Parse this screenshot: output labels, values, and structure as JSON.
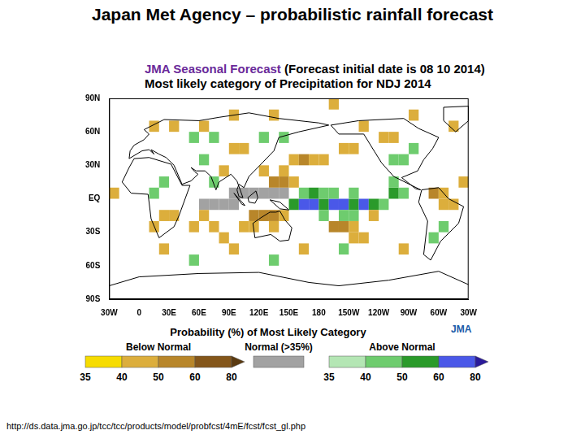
{
  "title": "Japan Met Agency – probabilistic rainfall forecast",
  "source_url": "http://ds.data.jma.go.jp/tcc/tcc/products/model/probfcst/4mE/fcst/fcst_gl.php",
  "logo": "JMA",
  "chart_data": {
    "type": "map",
    "title": "JMA Seasonal Forecast",
    "title_note": "(Forecast initial date is 08 10 2014)",
    "subtitle": "Most likely category of Precipitation for NDJ 2014",
    "xlim": [
      -30,
      330
    ],
    "xticks": [
      {
        "value": -30,
        "label": "30W"
      },
      0,
      {
        "value": 30,
        "label": "30E"
      },
      {
        "value": 60,
        "label": "60E"
      },
      {
        "value": 90,
        "label": "90E"
      },
      {
        "value": 120,
        "label": "120E"
      },
      {
        "value": 150,
        "label": "150E"
      },
      180,
      {
        "value": 210,
        "label": "150W"
      },
      {
        "value": 240,
        "label": "120W"
      },
      {
        "value": 270,
        "label": "90W"
      },
      {
        "value": 300,
        "label": "60W"
      },
      {
        "value": 330,
        "label": "30W"
      }
    ],
    "ylim": [
      -90,
      90
    ],
    "yticks": [
      {
        "value": -90,
        "label": "90S"
      },
      {
        "value": -60,
        "label": "60S"
      },
      {
        "value": -30,
        "label": "30S"
      },
      {
        "value": 0,
        "label": "EQ"
      },
      {
        "value": 30,
        "label": "30N"
      },
      {
        "value": 60,
        "label": "60N"
      },
      {
        "value": 90,
        "label": "90N"
      }
    ],
    "grid": false,
    "cell_size": 10,
    "cells": [
      [
        95,
        5,
        "normal",
        40
      ],
      [
        105,
        5,
        "normal",
        40
      ],
      [
        115,
        5,
        "normal",
        40
      ],
      [
        125,
        5,
        "normal",
        40
      ],
      [
        135,
        5,
        "normal",
        40
      ],
      [
        145,
        5,
        "normal",
        40
      ],
      [
        65,
        -5,
        "normal",
        40
      ],
      [
        75,
        -5,
        "normal",
        40
      ],
      [
        85,
        -5,
        "normal",
        40
      ],
      [
        95,
        -5,
        "normal",
        40
      ],
      [
        155,
        -5,
        "above",
        50
      ],
      [
        165,
        -5,
        "above",
        65
      ],
      [
        175,
        -5,
        "above",
        65
      ],
      [
        185,
        -5,
        "above",
        55
      ],
      [
        195,
        -5,
        "above",
        65
      ],
      [
        205,
        -5,
        "above",
        65
      ],
      [
        215,
        -5,
        "above",
        55
      ],
      [
        225,
        -5,
        "above",
        65
      ],
      [
        235,
        -5,
        "above",
        55
      ],
      [
        245,
        -5,
        "above",
        45
      ],
      [
        165,
        5,
        "above",
        45
      ],
      [
        175,
        5,
        "above",
        55
      ],
      [
        185,
        5,
        "above",
        45
      ],
      [
        195,
        5,
        "above",
        45
      ],
      [
        215,
        5,
        "above",
        40
      ],
      [
        255,
        5,
        "above",
        50
      ],
      [
        265,
        5,
        "above",
        45
      ],
      [
        185,
        -15,
        "above",
        40
      ],
      [
        205,
        -15,
        "above",
        40
      ],
      [
        215,
        -15,
        "above",
        45
      ],
      [
        135,
        15,
        "below",
        50
      ],
      [
        145,
        15,
        "below",
        50
      ],
      [
        155,
        15,
        "below",
        45
      ],
      [
        125,
        25,
        "below",
        45
      ],
      [
        145,
        25,
        "below",
        40
      ],
      [
        155,
        35,
        "below",
        45
      ],
      [
        165,
        35,
        "below",
        50
      ],
      [
        175,
        35,
        "below",
        45
      ],
      [
        185,
        35,
        "below",
        45
      ],
      [
        205,
        45,
        "below",
        40
      ],
      [
        215,
        45,
        "below",
        40
      ],
      [
        115,
        -15,
        "below",
        50
      ],
      [
        125,
        -15,
        "below",
        55
      ],
      [
        135,
        -15,
        "below",
        50
      ],
      [
        145,
        -15,
        "below",
        45
      ],
      [
        105,
        -25,
        "below",
        45
      ],
      [
        115,
        -25,
        "below",
        40
      ],
      [
        135,
        -25,
        "below",
        40
      ],
      [
        195,
        -25,
        "below",
        50
      ],
      [
        205,
        -25,
        "below",
        50
      ],
      [
        215,
        -25,
        "below",
        45
      ],
      [
        215,
        -35,
        "below",
        45
      ],
      [
        225,
        -35,
        "below",
        40
      ],
      [
        235,
        -15,
        "below",
        40
      ],
      [
        295,
        5,
        "below",
        50
      ],
      [
        305,
        5,
        "below",
        45
      ],
      [
        305,
        -5,
        "below",
        45
      ],
      [
        315,
        -5,
        "below",
        40
      ],
      [
        305,
        -25,
        "above",
        40
      ],
      [
        295,
        -35,
        "above",
        40
      ],
      [
        325,
        15,
        "below",
        40
      ],
      [
        -25,
        5,
        "below",
        40
      ],
      [
        25,
        -15,
        "below",
        45
      ],
      [
        35,
        -15,
        "below",
        45
      ],
      [
        15,
        -25,
        "below",
        40
      ],
      [
        15,
        5,
        "above",
        40
      ],
      [
        25,
        15,
        "above",
        40
      ],
      [
        55,
        55,
        "above",
        40
      ],
      [
        75,
        55,
        "above",
        40
      ],
      [
        95,
        45,
        "below",
        40
      ],
      [
        105,
        45,
        "below",
        40
      ],
      [
        15,
        65,
        "below",
        45
      ],
      [
        35,
        65,
        "below",
        45
      ],
      [
        65,
        65,
        "below",
        40
      ],
      [
        95,
        75,
        "below",
        40
      ],
      [
        135,
        75,
        "below",
        45
      ],
      [
        125,
        55,
        "above",
        40
      ],
      [
        145,
        55,
        "above",
        40
      ],
      [
        85,
        25,
        "below",
        40
      ],
      [
        65,
        35,
        "above",
        40
      ],
      [
        75,
        15,
        "above",
        40
      ],
      [
        245,
        55,
        "below",
        45
      ],
      [
        255,
        55,
        "below",
        45
      ],
      [
        225,
        65,
        "below",
        40
      ],
      [
        255,
        35,
        "above",
        45
      ],
      [
        265,
        35,
        "above",
        45
      ],
      [
        275,
        45,
        "above",
        40
      ],
      [
        275,
        75,
        "below",
        45
      ],
      [
        255,
        15,
        "above",
        40
      ],
      [
        315,
        65,
        "below",
        40
      ],
      [
        195,
        85,
        "below",
        40
      ],
      [
        25,
        -45,
        "below",
        40
      ],
      [
        95,
        -45,
        "below",
        40
      ],
      [
        165,
        -45,
        "below",
        40
      ],
      [
        265,
        -45,
        "below",
        40
      ],
      [
        55,
        -55,
        "above",
        40
      ],
      [
        135,
        -55,
        "above",
        40
      ],
      [
        205,
        -45,
        "above",
        40
      ],
      [
        55,
        -25,
        "below",
        45
      ],
      [
        75,
        -25,
        "below",
        45
      ],
      [
        65,
        -15,
        "below",
        40
      ],
      [
        85,
        -35,
        "below",
        40
      ]
    ],
    "coastlines": [
      [
        [
          -17,
          15
        ],
        [
          -10,
          28
        ],
        [
          -5,
          36
        ],
        [
          10,
          37
        ],
        [
          32,
          31
        ],
        [
          43,
          12
        ],
        [
          51,
          12
        ],
        [
          40,
          -15
        ],
        [
          35,
          -25
        ],
        [
          20,
          -35
        ],
        [
          12,
          -18
        ],
        [
          9,
          4
        ],
        [
          -8,
          5
        ],
        [
          -17,
          15
        ]
      ],
      [
        [
          280,
          -3
        ],
        [
          283,
          8
        ],
        [
          300,
          10
        ],
        [
          310,
          0
        ],
        [
          325,
          -7
        ],
        [
          320,
          -22
        ],
        [
          302,
          -38
        ],
        [
          292,
          -55
        ],
        [
          285,
          -50
        ],
        [
          289,
          -20
        ],
        [
          280,
          -3
        ]
      ],
      [
        [
          192,
          66
        ],
        [
          220,
          70
        ],
        [
          265,
          72
        ],
        [
          280,
          63
        ],
        [
          300,
          55
        ],
        [
          294,
          45
        ],
        [
          285,
          35
        ],
        [
          279,
          25
        ],
        [
          263,
          19
        ],
        [
          277,
          9
        ],
        [
          282,
          8
        ],
        [
          255,
          20
        ],
        [
          243,
          32
        ],
        [
          236,
          42
        ],
        [
          225,
          58
        ],
        [
          200,
          58
        ],
        [
          192,
          66
        ]
      ],
      [
        [
          305,
          82
        ],
        [
          330,
          83
        ],
        [
          330,
          70
        ],
        [
          317,
          60
        ],
        [
          305,
          70
        ],
        [
          305,
          82
        ]
      ],
      [
        [
          -10,
          36
        ],
        [
          -9,
          43
        ],
        [
          -5,
          48
        ],
        [
          5,
          53
        ],
        [
          10,
          58
        ],
        [
          5,
          62
        ],
        [
          25,
          71
        ],
        [
          60,
          70
        ],
        [
          80,
          73
        ],
        [
          110,
          77
        ],
        [
          140,
          72
        ],
        [
          180,
          68
        ],
        [
          190,
          66
        ],
        [
          160,
          60
        ],
        [
          140,
          55
        ],
        [
          135,
          43
        ],
        [
          121,
          30
        ],
        [
          110,
          20
        ],
        [
          105,
          10
        ],
        [
          100,
          13
        ],
        [
          98,
          8
        ],
        [
          100,
          2
        ],
        [
          104,
          1
        ],
        [
          98,
          16
        ],
        [
          92,
          22
        ],
        [
          80,
          15
        ],
        [
          77,
          8
        ],
        [
          72,
          20
        ],
        [
          66,
          25
        ],
        [
          57,
          25
        ],
        [
          52,
          28
        ],
        [
          56,
          24
        ],
        [
          59,
          22
        ],
        [
          52,
          16
        ],
        [
          43,
          13
        ],
        [
          35,
          30
        ],
        [
          27,
          37
        ],
        [
          20,
          40
        ],
        [
          12,
          44
        ],
        [
          15,
          40
        ],
        [
          10,
          44
        ],
        [
          3,
          43
        ],
        [
          -10,
          36
        ]
      ],
      [
        [
          114,
          -22
        ],
        [
          122,
          -17
        ],
        [
          131,
          -12
        ],
        [
          137,
          -12
        ],
        [
          141,
          -11
        ],
        [
          146,
          -19
        ],
        [
          153,
          -26
        ],
        [
          150,
          -37
        ],
        [
          141,
          -38
        ],
        [
          132,
          -32
        ],
        [
          116,
          -35
        ],
        [
          114,
          -22
        ]
      ],
      [
        [
          -30,
          -78
        ],
        [
          0,
          -70
        ],
        [
          60,
          -67
        ],
        [
          120,
          -66
        ],
        [
          170,
          -75
        ],
        [
          200,
          -78
        ],
        [
          250,
          -73
        ],
        [
          300,
          -65
        ],
        [
          330,
          -77
        ]
      ],
      [
        [
          109,
          1
        ],
        [
          117,
          7
        ],
        [
          119,
          1
        ],
        [
          116,
          -4
        ],
        [
          110,
          -3
        ],
        [
          109,
          1
        ]
      ],
      [
        [
          95,
          5
        ],
        [
          106,
          -6
        ],
        [
          103,
          -5
        ],
        [
          95,
          5
        ]
      ],
      [
        [
          131,
          -1
        ],
        [
          141,
          -3
        ],
        [
          150,
          -10
        ],
        [
          141,
          -9
        ],
        [
          131,
          -1
        ]
      ]
    ],
    "colorbar": {
      "title": "Probability (%) of Most Likely Category",
      "ticks": [
        35,
        40,
        50,
        60,
        80
      ],
      "below": {
        "label": "Below Normal",
        "colors": [
          "#f6dc00",
          "#dcae3c",
          "#b8862a",
          "#84561a",
          "#5a3a10"
        ]
      },
      "normal": {
        "label": "Normal (>35%)",
        "color": "#a2a2a2"
      },
      "above": {
        "label": "Above Normal",
        "colors": [
          "#b4e6b4",
          "#6ecc6e",
          "#2a9a2a",
          "#4a58e8",
          "#2a1a9a"
        ]
      }
    }
  }
}
